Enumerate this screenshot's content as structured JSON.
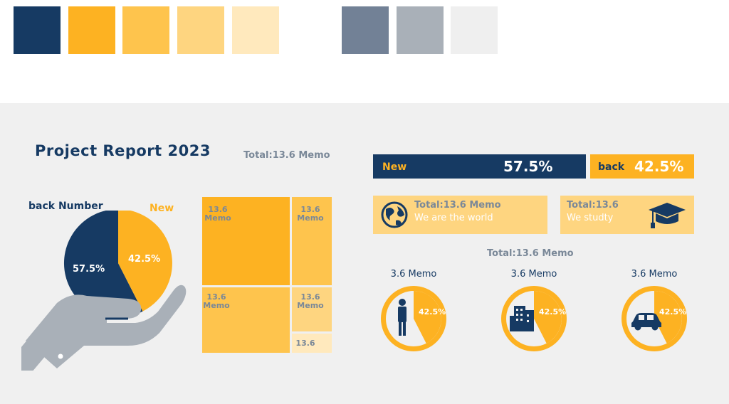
{
  "palette": {
    "primary": [
      "#163a63",
      "#fdb222",
      "#fec44d",
      "#fed580",
      "#ffe9bd"
    ],
    "neutral": [
      "#728196",
      "#a9b0b8",
      "#efefef"
    ]
  },
  "report": {
    "title": "Project Report 2023",
    "total": "Total:13.6 Memo"
  },
  "pie": {
    "label_back": "back Number",
    "label_new": "New",
    "slices": [
      {
        "label": "57.5%",
        "value": 57.5,
        "color": "#163a63"
      },
      {
        "label": "42.5%",
        "value": 42.5,
        "color": "#fdb222"
      }
    ]
  },
  "treemap": {
    "tile_memo": "13.6\nMemo",
    "tile_small": "13.6"
  },
  "bars": {
    "new_label": "New",
    "new_value": "57.5%",
    "back_label": "back",
    "back_value": "42.5%"
  },
  "cards": {
    "world_title": "Total:13.6 Memo",
    "world_sub": "We are the world",
    "study_title": "Total:13.6",
    "study_sub": "We studty"
  },
  "stats": {
    "total": "Total:13.6 Memo",
    "items": [
      {
        "label": "3.6 Memo",
        "pct": "42.5%",
        "value": 42.5,
        "icon": "person-icon"
      },
      {
        "label": "3.6 Memo",
        "pct": "42.5%",
        "value": 42.5,
        "icon": "building-icon"
      },
      {
        "label": "3.6 Memo",
        "pct": "42.5%",
        "value": 42.5,
        "icon": "car-icon"
      }
    ]
  }
}
